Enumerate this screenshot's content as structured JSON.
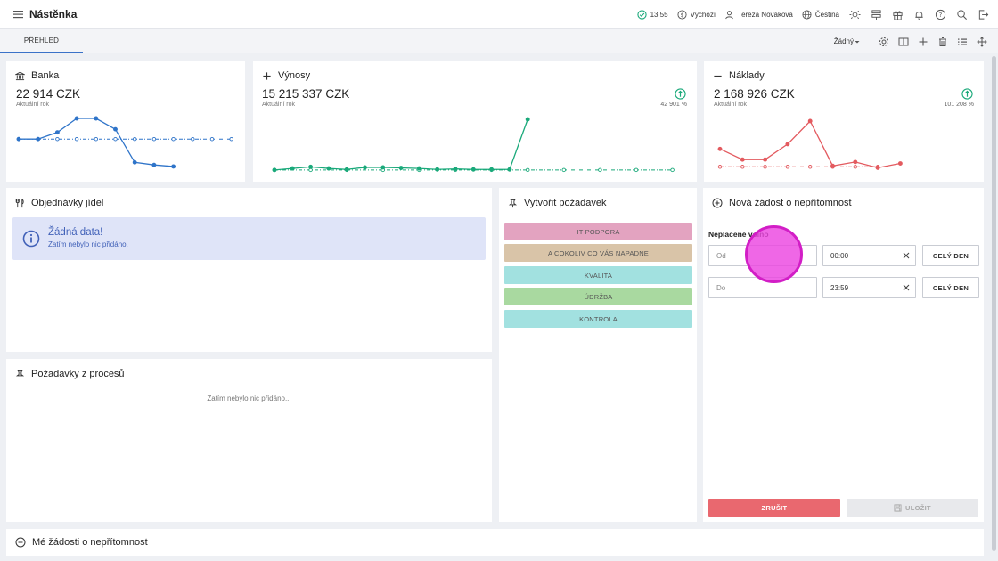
{
  "header": {
    "title": "Nástěnka",
    "time": "13:55",
    "currency_label": "Výchozí",
    "user": "Tereza Nováková",
    "language": "Čeština"
  },
  "tabs": [
    {
      "label": "PŘEHLED",
      "active": true
    }
  ],
  "toolbar": {
    "view_select": "Žádný"
  },
  "cards": {
    "bank": {
      "title": "Banka",
      "value": "22 914 CZK",
      "sub": "Aktuální rok",
      "color": "#2f74c9",
      "actual": [
        0.4,
        0.4,
        0.27,
        0.0,
        0.0,
        0.21,
        0.85,
        0.9,
        0.93
      ],
      "baseline": [
        0.4,
        0.4,
        0.4,
        0.4,
        0.4,
        0.4,
        0.4,
        0.4,
        0.4,
        0.4,
        0.4,
        0.4
      ]
    },
    "revenue": {
      "title": "Výnosy",
      "value": "15 215 337 CZK",
      "sub": "Aktuální rok",
      "pct": "42 901 %",
      "color": "#1aa97a",
      "actual": [
        0.98,
        0.95,
        0.92,
        0.95,
        0.97,
        0.93,
        0.93,
        0.94,
        0.95,
        0.97,
        0.96,
        0.97,
        0.97,
        0.97,
        0.0
      ],
      "baseline": [
        0.98,
        0.98,
        0.98,
        0.98,
        0.98,
        0.98,
        0.98,
        0.98,
        0.98,
        0.98,
        0.98,
        0.98
      ]
    },
    "costs": {
      "title": "Náklady",
      "value": "2 168 926 CZK",
      "sub": "Aktuální rok",
      "pct": "101 208 %",
      "color": "#e35a5f",
      "actual": [
        0.58,
        0.8,
        0.8,
        0.48,
        0.0,
        0.93,
        0.85,
        0.97,
        0.88
      ],
      "baseline": [
        0.95,
        0.95,
        0.95,
        0.95,
        0.95,
        0.95,
        0.95,
        0.95
      ]
    },
    "food_orders": {
      "title": "Objednávky jídel",
      "empty_title": "Žádná data!",
      "empty_sub": "Zatím nebylo nic přidáno."
    },
    "process_requests": {
      "title": "Požadavky z procesů",
      "empty": "Zatím nebylo nic přidáno..."
    },
    "create_request": {
      "title": "Vytvořit požadavek",
      "buttons": [
        {
          "label": "IT PODPORA",
          "color": "#e3a3c0"
        },
        {
          "label": "A COKOLIV CO VÁS NAPADNE",
          "color": "#d9c4a8"
        },
        {
          "label": "KVALITA",
          "color": "#a2e1e0"
        },
        {
          "label": "ÚDRŽBA",
          "color": "#a9d9a0"
        },
        {
          "label": "KONTROLA",
          "color": "#a2e1e0"
        }
      ]
    },
    "absence": {
      "title": "Nová žádost o nepřítomnost",
      "type_label": "Neplacené volno",
      "from_placeholder": "Od",
      "from_time": "00:00",
      "to_placeholder": "Do",
      "to_time": "23:59",
      "all_day": "CELÝ DEN",
      "cancel": "ZRUŠIT",
      "save": "ULOŽIT"
    },
    "my_absences": {
      "title": "Mé žádosti o nepřítomnost"
    }
  }
}
